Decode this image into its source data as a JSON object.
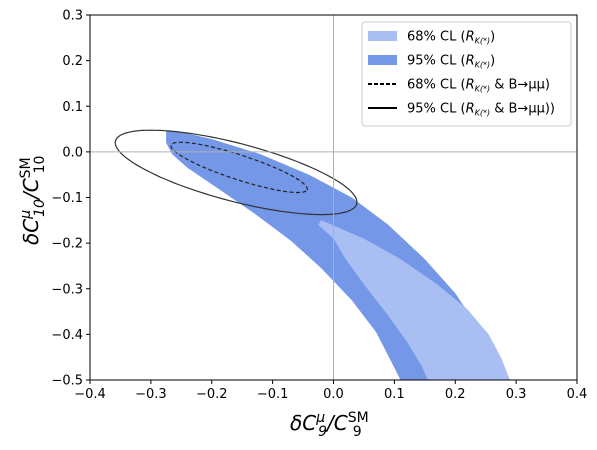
{
  "chart_data": {
    "type": "scatter",
    "xlabel": {
      "base": "δC",
      "sup": "μ",
      "sub": "9",
      "sep": "/C",
      "sup2": "SM",
      "sub2": "9"
    },
    "ylabel": {
      "base": "δC",
      "sup": "μ",
      "sub": "10",
      "sep": "/C",
      "sup2": "SM",
      "sub2": "10"
    },
    "xlim": [
      -0.4,
      0.4
    ],
    "ylim": [
      -0.5,
      0.3
    ],
    "xticks": [
      -0.4,
      -0.3,
      -0.2,
      -0.1,
      0.0,
      0.1,
      0.2,
      0.3,
      0.4
    ],
    "yticks": [
      -0.5,
      -0.4,
      -0.3,
      -0.2,
      -0.1,
      0.0,
      0.1,
      0.2,
      0.3
    ],
    "xtick_labels": [
      "−0.4",
      "−0.3",
      "−0.2",
      "−0.1",
      "0.0",
      "0.1",
      "0.2",
      "0.3",
      "0.4"
    ],
    "ytick_labels": [
      "−0.5",
      "−0.4",
      "−0.3",
      "−0.2",
      "−0.1",
      "0.0",
      "0.1",
      "0.2",
      "0.3"
    ],
    "reference_lines": {
      "x": 0.0,
      "y": 0.0
    },
    "legend_position": "top-right",
    "series": [
      {
        "name": "68% CL (RK(*))",
        "label_main": "68% CL (",
        "label_R": "R",
        "label_Ksub": "K(*)",
        "label_tail": ")",
        "style": "filled",
        "color": "#a9bff4",
        "polygon": [
          [
            -0.02,
            -0.15
          ],
          [
            0.05,
            -0.19
          ],
          [
            0.11,
            -0.235
          ],
          [
            0.17,
            -0.29
          ],
          [
            0.22,
            -0.345
          ],
          [
            0.255,
            -0.4
          ],
          [
            0.275,
            -0.45
          ],
          [
            0.29,
            -0.5
          ],
          [
            0.155,
            -0.5
          ],
          [
            0.145,
            -0.47
          ],
          [
            0.12,
            -0.415
          ],
          [
            0.085,
            -0.35
          ],
          [
            0.05,
            -0.29
          ],
          [
            0.02,
            -0.235
          ],
          [
            0.0,
            -0.19
          ],
          [
            -0.025,
            -0.16
          ]
        ]
      },
      {
        "name": "95% CL (RK(*))",
        "label_main": "95% CL (",
        "label_R": "R",
        "label_Ksub": "K(*)",
        "label_tail": ")",
        "style": "filled",
        "color": "#7497e8",
        "polygon": [
          [
            -0.275,
            0.045
          ],
          [
            -0.255,
            0.045
          ],
          [
            -0.2,
            0.028
          ],
          [
            -0.12,
            -0.005
          ],
          [
            -0.04,
            -0.05
          ],
          [
            0.03,
            -0.1
          ],
          [
            0.09,
            -0.16
          ],
          [
            0.15,
            -0.235
          ],
          [
            0.2,
            -0.31
          ],
          [
            0.24,
            -0.39
          ],
          [
            0.265,
            -0.45
          ],
          [
            0.28,
            -0.5
          ],
          [
            0.11,
            -0.5
          ],
          [
            0.095,
            -0.46
          ],
          [
            0.07,
            -0.395
          ],
          [
            0.03,
            -0.325
          ],
          [
            -0.02,
            -0.255
          ],
          [
            -0.07,
            -0.195
          ],
          [
            -0.13,
            -0.135
          ],
          [
            -0.19,
            -0.08
          ],
          [
            -0.24,
            -0.035
          ],
          [
            -0.265,
            -0.005
          ],
          [
            -0.275,
            0.02
          ]
        ]
      },
      {
        "name": "68% CL (RK(*) & B→μμ)",
        "label_main": "68% CL (",
        "label_R": "R",
        "label_Ksub": "K(*)",
        "label_tail": " & B→μμ)",
        "style": "dashed",
        "color": "#222222",
        "ellipse": {
          "cx": -0.155,
          "cy": -0.034,
          "a": 0.122,
          "b": 0.026,
          "angle_deg": -24
        }
      },
      {
        "name": "95% CL (RK(*) & B→μμ))",
        "label_main": "95% CL (",
        "label_R": "R",
        "label_Ksub": "K(*)",
        "label_tail": " & B→μμ))",
        "style": "solid",
        "color": "#333333",
        "ellipse": {
          "cx": -0.16,
          "cy": -0.045,
          "a": 0.21,
          "b": 0.062,
          "angle_deg": -20
        }
      }
    ]
  }
}
